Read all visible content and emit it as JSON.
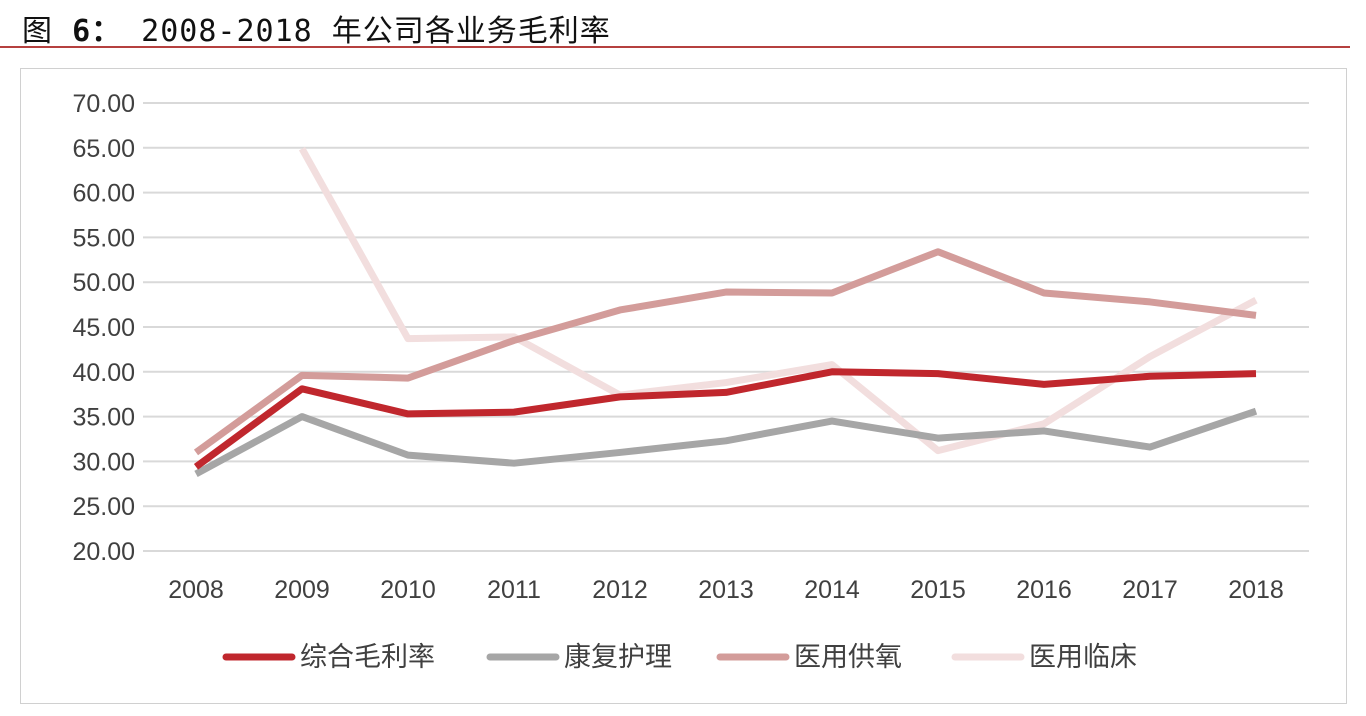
{
  "title": {
    "prefix": "图 ",
    "number": "6：",
    "text": " 2008-2018 年公司各业务毛利率"
  },
  "chart_data": {
    "type": "line",
    "title": "",
    "xlabel": "",
    "ylabel": "",
    "categories": [
      "2008",
      "2009",
      "2010",
      "2011",
      "2012",
      "2013",
      "2014",
      "2015",
      "2016",
      "2017",
      "2018"
    ],
    "ylim": [
      20,
      70
    ],
    "yticks": [
      "20.00",
      "25.00",
      "30.00",
      "35.00",
      "40.00",
      "45.00",
      "50.00",
      "55.00",
      "60.00",
      "65.00",
      "70.00"
    ],
    "grid": true,
    "legend_position": "bottom",
    "series": [
      {
        "name": "综合毛利率",
        "color": "#C0272D",
        "values": [
          29.4,
          38.1,
          35.3,
          35.5,
          37.2,
          37.7,
          40.0,
          39.8,
          38.6,
          39.5,
          39.8
        ]
      },
      {
        "name": "康复护理",
        "color": "#A6A6A6",
        "values": [
          28.6,
          35.0,
          30.7,
          29.8,
          31.0,
          32.3,
          34.5,
          32.6,
          33.4,
          31.6,
          35.6
        ]
      },
      {
        "name": "医用供氧",
        "color": "#D39C9A",
        "values": [
          31.0,
          39.6,
          39.3,
          43.5,
          46.9,
          48.9,
          48.8,
          53.4,
          48.8,
          47.8,
          46.3
        ]
      },
      {
        "name": "医用临床",
        "color": "#F2DEDE",
        "values": [
          null,
          64.9,
          43.7,
          43.9,
          37.4,
          38.8,
          40.8,
          31.2,
          34.2,
          41.7,
          48.0
        ]
      }
    ]
  }
}
